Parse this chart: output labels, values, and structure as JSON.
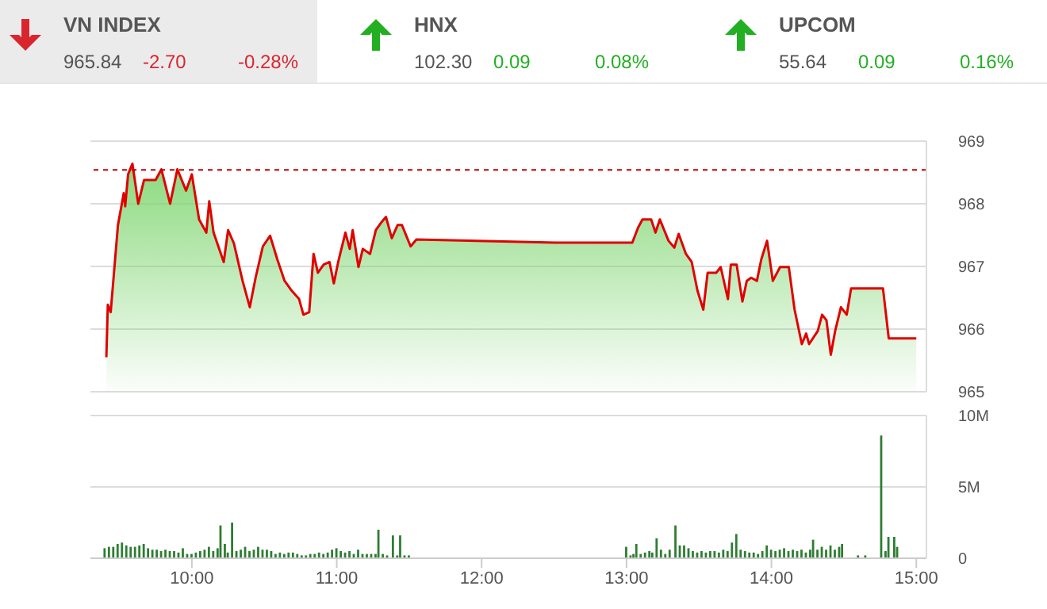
{
  "chart_data": [
    {
      "type": "other",
      "title": "VN INDEX",
      "annotations": [
        "965.84",
        "-2.70",
        "-0.28%"
      ],
      "colors": [
        "#555555",
        "#d9262e",
        "#d9262e"
      ]
    },
    {
      "type": "other",
      "title": "HNX",
      "annotations": [
        "102.30",
        "0.09",
        "0.08%"
      ],
      "colors": [
        "#555555",
        "#22b022",
        "#22b022"
      ]
    },
    {
      "type": "other",
      "title": "UPCOM",
      "annotations": [
        "55.64",
        "0.09",
        "0.16%"
      ],
      "colors": [
        "#555555",
        "#22b022",
        "#22b022"
      ]
    },
    {
      "type": "area",
      "xlim": [
        9.3,
        15.07
      ],
      "ylim": [
        965,
        969
      ],
      "yticks": [
        965,
        966,
        967,
        968,
        969
      ],
      "grid": "y",
      "tick_labels": "y",
      "ref_lines": [
        {
          "axis": "y",
          "value": 968.54,
          "color": "#c00000",
          "line_style": "dashed"
        }
      ],
      "series": [
        {
          "color": "#e00000",
          "x": [
            9.41,
            9.42,
            9.44,
            9.49,
            9.53,
            9.54,
            9.56,
            9.59,
            9.63,
            9.67,
            9.75,
            9.79,
            9.85,
            9.9,
            9.96,
            10.0,
            10.05,
            10.1,
            10.12,
            10.15,
            10.22,
            10.25,
            10.29,
            10.35,
            10.4,
            10.44,
            10.49,
            10.54,
            10.59,
            10.64,
            10.69,
            10.74,
            10.77,
            10.81,
            10.84,
            10.87,
            10.91,
            10.95,
            10.98,
            11.01,
            11.06,
            11.09,
            11.11,
            11.15,
            11.18,
            11.23,
            11.27,
            11.31,
            11.34,
            11.38,
            11.42,
            11.45,
            11.51,
            11.55,
            12.51,
            13.04,
            13.08,
            13.11,
            13.17,
            13.2,
            13.23,
            13.29,
            13.33,
            13.36,
            13.41,
            13.45,
            13.49,
            13.53,
            13.56,
            13.62,
            13.65,
            13.7,
            13.72,
            13.76,
            13.8,
            13.83,
            13.86,
            13.9,
            13.93,
            13.97,
            14.01,
            14.06,
            14.12,
            14.16,
            14.21,
            14.24,
            14.26,
            14.32,
            14.35,
            14.38,
            14.41,
            14.44,
            14.48,
            14.52,
            14.55,
            14.77,
            14.81,
            15.0
          ],
          "values": [
            965.55,
            966.39,
            966.27,
            967.66,
            968.17,
            967.96,
            968.47,
            968.64,
            968.0,
            968.38,
            968.38,
            968.55,
            968.0,
            968.55,
            968.21,
            968.47,
            967.75,
            967.54,
            968.04,
            967.54,
            967.07,
            967.58,
            967.37,
            966.77,
            966.35,
            966.82,
            967.32,
            967.49,
            967.11,
            966.77,
            966.61,
            966.48,
            966.23,
            966.27,
            967.2,
            966.9,
            967.03,
            967.07,
            966.73,
            967.07,
            967.54,
            967.28,
            967.58,
            966.99,
            967.28,
            967.2,
            967.58,
            967.71,
            967.79,
            967.45,
            967.66,
            967.66,
            967.32,
            967.43,
            967.38,
            967.38,
            967.62,
            967.75,
            967.75,
            967.54,
            967.75,
            967.41,
            967.3,
            967.52,
            967.2,
            967.07,
            966.61,
            966.31,
            966.9,
            966.9,
            966.99,
            966.48,
            967.03,
            967.03,
            966.44,
            966.77,
            966.82,
            966.77,
            967.11,
            967.41,
            966.77,
            966.99,
            966.99,
            966.31,
            965.76,
            965.93,
            965.76,
            965.97,
            966.23,
            966.14,
            965.59,
            965.97,
            966.35,
            966.23,
            966.65,
            966.65,
            965.85,
            965.85
          ]
        }
      ]
    },
    {
      "type": "bar",
      "xlim": [
        9.3,
        15.07
      ],
      "ylim": [
        0,
        10
      ],
      "yticks": [
        {
          "value": 0,
          "label": "0"
        },
        {
          "value": 5,
          "label": "5M"
        },
        {
          "value": 10,
          "label": "10M"
        }
      ],
      "xticks": [
        {
          "value": 10,
          "label": "10:00"
        },
        {
          "value": 11,
          "label": "11:00"
        },
        {
          "value": 12,
          "label": "12:00"
        },
        {
          "value": 13,
          "label": "13:00"
        },
        {
          "value": 14,
          "label": "14:00"
        },
        {
          "value": 15,
          "label": "15:00"
        }
      ],
      "grid": "y",
      "x": [
        9.4,
        9.43,
        9.46,
        9.49,
        9.52,
        9.55,
        9.58,
        9.61,
        9.64,
        9.67,
        9.7,
        9.73,
        9.76,
        9.79,
        9.82,
        9.85,
        9.88,
        9.91,
        9.94,
        9.97,
        10.0,
        10.03,
        10.06,
        10.09,
        10.12,
        10.15,
        10.18,
        10.2,
        10.23,
        10.25,
        10.28,
        10.31,
        10.34,
        10.37,
        10.4,
        10.43,
        10.46,
        10.49,
        10.52,
        10.55,
        10.58,
        10.61,
        10.64,
        10.67,
        10.7,
        10.73,
        10.76,
        10.79,
        10.82,
        10.85,
        10.88,
        10.91,
        10.94,
        10.97,
        11.0,
        11.03,
        11.06,
        11.09,
        11.12,
        11.15,
        11.18,
        11.21,
        11.24,
        11.27,
        11.29,
        11.32,
        11.35,
        11.39,
        11.42,
        11.44,
        11.47,
        11.5,
        13.0,
        13.03,
        13.05,
        13.07,
        13.1,
        13.13,
        13.16,
        13.18,
        13.21,
        13.24,
        13.27,
        13.3,
        13.34,
        13.37,
        13.4,
        13.43,
        13.46,
        13.49,
        13.52,
        13.55,
        13.58,
        13.61,
        13.64,
        13.67,
        13.7,
        13.73,
        13.76,
        13.79,
        13.82,
        13.85,
        13.88,
        13.91,
        13.94,
        13.97,
        14.0,
        14.03,
        14.06,
        14.09,
        14.12,
        14.15,
        14.18,
        14.21,
        14.24,
        14.27,
        14.29,
        14.32,
        14.35,
        14.38,
        14.41,
        14.44,
        14.47,
        14.49,
        14.6,
        14.65,
        14.76,
        14.79,
        14.81,
        14.85,
        14.87
      ],
      "series": [
        {
          "color": "#2e7d32",
          "values": [
            0.7,
            0.8,
            0.8,
            1.0,
            1.1,
            0.9,
            0.8,
            0.8,
            0.9,
            1.0,
            0.7,
            0.6,
            0.6,
            0.5,
            0.6,
            0.5,
            0.5,
            0.4,
            0.7,
            0.3,
            0.3,
            0.4,
            0.5,
            0.6,
            0.8,
            0.5,
            0.7,
            2.3,
            1.0,
            0.4,
            2.5,
            0.5,
            0.6,
            0.8,
            0.5,
            0.6,
            0.8,
            0.6,
            0.6,
            0.5,
            0.3,
            0.4,
            0.3,
            0.4,
            0.4,
            0.3,
            0.2,
            0.2,
            0.3,
            0.3,
            0.4,
            0.3,
            0.4,
            0.6,
            0.7,
            0.5,
            0.4,
            0.5,
            0.3,
            0.6,
            0.3,
            0.3,
            0.3,
            0.3,
            2.0,
            0.3,
            0.2,
            1.6,
            0.2,
            1.6,
            0.2,
            0.2,
            0.8,
            0.2,
            0.3,
            1.0,
            0.3,
            0.4,
            0.5,
            0.4,
            1.4,
            0.6,
            0.3,
            0.6,
            2.3,
            0.9,
            0.9,
            0.7,
            0.5,
            0.4,
            0.5,
            0.4,
            0.5,
            0.5,
            0.4,
            0.6,
            0.5,
            1.1,
            1.7,
            0.6,
            0.5,
            0.4,
            0.4,
            0.3,
            0.5,
            0.9,
            0.6,
            0.5,
            0.6,
            0.7,
            0.5,
            0.6,
            0.5,
            0.6,
            0.4,
            0.6,
            1.3,
            0.6,
            0.8,
            0.6,
            0.9,
            0.6,
            0.8,
            1.0,
            0.2,
            0.2,
            8.6,
            0.5,
            1.5,
            1.5,
            0.8
          ]
        }
      ]
    }
  ]
}
